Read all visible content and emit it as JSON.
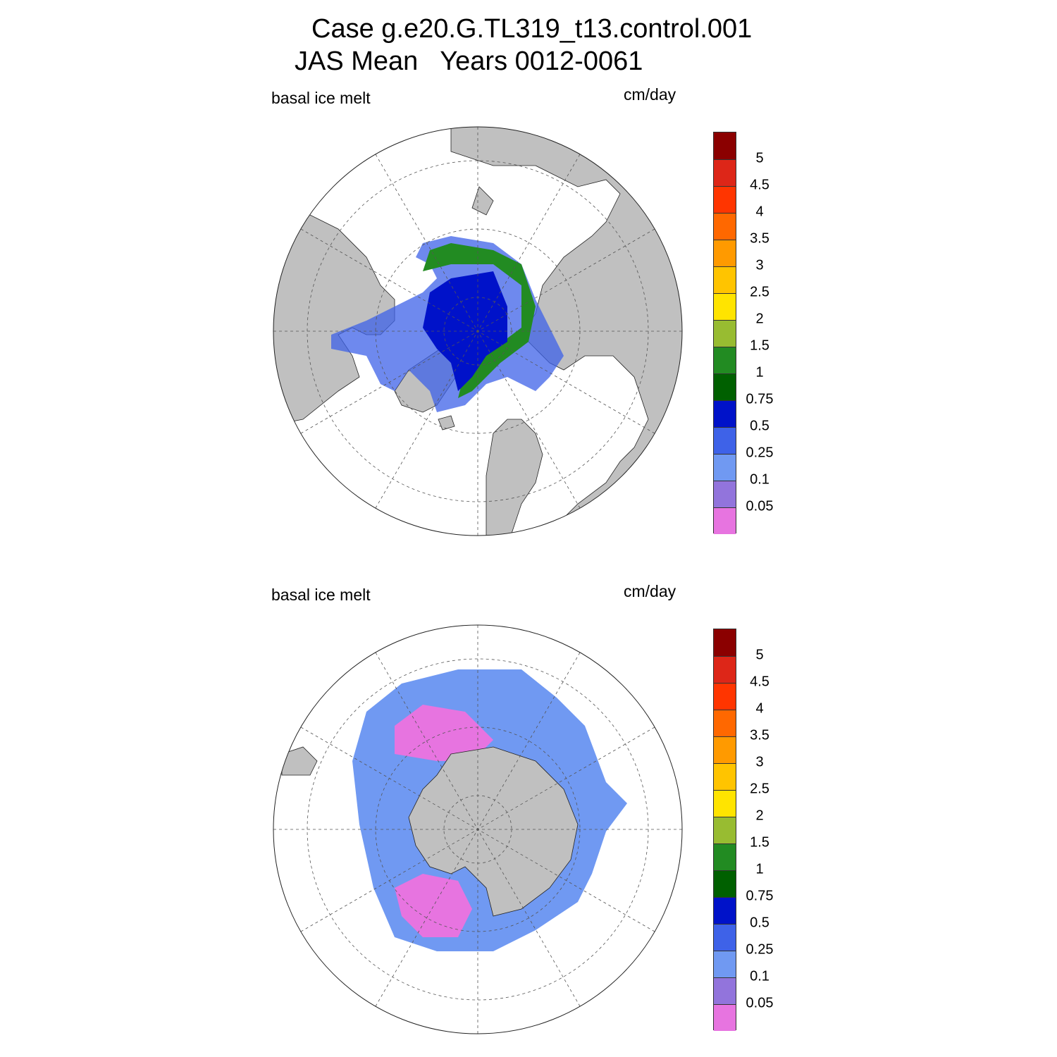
{
  "title_line1": "Case g.e20.G.TL319_t13.control.001",
  "title_line2": "JAS Mean   Years 0012-0061",
  "panels": [
    {
      "variable": "basal ice melt",
      "units": "cm/day",
      "hemisphere": "north"
    },
    {
      "variable": "basal ice melt",
      "units": "cm/day",
      "hemisphere": "south"
    }
  ],
  "legend": {
    "levels": [
      "0.05",
      "0.1",
      "0.25",
      "0.5",
      "0.75",
      "1",
      "1.5",
      "2",
      "2.5",
      "3",
      "3.5",
      "4",
      "4.5",
      "5"
    ],
    "colors": [
      "#e774e0",
      "#9274dc",
      "#7099f2",
      "#3e62e8",
      "#0012c9",
      "#006000",
      "#228b22",
      "#98bc31",
      "#ffe400",
      "#ffc400",
      "#ff9a00",
      "#ff6800",
      "#ff3500",
      "#dd2618",
      "#8b0000"
    ]
  },
  "colors": {
    "land": "#c0c0c0",
    "ocean": "#ffffff",
    "grid": "#555555"
  }
}
